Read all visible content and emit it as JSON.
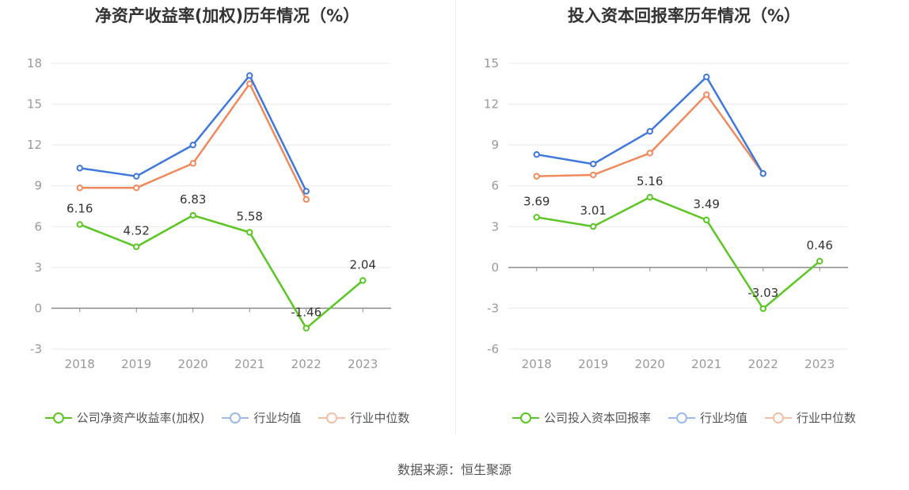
{
  "source": "数据来源：恒生聚源",
  "colors": {
    "company": "#5bc623",
    "industry_avg": "#3f78dd",
    "industry_median": "#f08a5d",
    "grid": "#e6e9f0",
    "axis": "#999999",
    "label": "#333333"
  },
  "legend_names": [
    "行业均值",
    "行业中位数"
  ],
  "chart_data": [
    {
      "type": "line",
      "title": "净资产收益率(加权)历年情况（%）",
      "categories": [
        "2018",
        "2019",
        "2020",
        "2021",
        "2022",
        "2023"
      ],
      "ylim": [
        -3,
        18
      ],
      "yticks": [
        -3,
        0,
        3,
        6,
        9,
        12,
        15,
        18
      ],
      "grid": true,
      "legend_position": "bottom",
      "series": [
        {
          "name": "公司净资产收益率(加权)",
          "values": [
            6.16,
            4.52,
            6.83,
            5.58,
            -1.46,
            2.04
          ],
          "data_labels": [
            "6.16",
            "4.52",
            "6.83",
            "5.58",
            "-1.46",
            "2.04"
          ]
        },
        {
          "name": "行业均值",
          "values": [
            10.3,
            9.7,
            12.0,
            17.1,
            8.6,
            null
          ]
        },
        {
          "name": "行业中位数",
          "values": [
            8.85,
            8.85,
            10.65,
            16.5,
            8.0,
            null
          ]
        }
      ]
    },
    {
      "type": "line",
      "title": "投入资本回报率历年情况（%）",
      "categories": [
        "2018",
        "2019",
        "2020",
        "2021",
        "2022",
        "2023"
      ],
      "ylim": [
        -6,
        15
      ],
      "yticks": [
        -6,
        -3,
        0,
        3,
        6,
        9,
        12,
        15
      ],
      "grid": true,
      "legend_position": "bottom",
      "series": [
        {
          "name": "公司投入资本回报率",
          "values": [
            3.69,
            3.01,
            5.16,
            3.49,
            -3.03,
            0.46
          ],
          "data_labels": [
            "3.69",
            "3.01",
            "5.16",
            "3.49",
            "-3.03",
            "0.46"
          ]
        },
        {
          "name": "行业均值",
          "values": [
            8.3,
            7.6,
            10.0,
            14.0,
            6.9,
            null
          ]
        },
        {
          "name": "行业中位数",
          "values": [
            6.7,
            6.8,
            8.4,
            12.7,
            6.9,
            null
          ]
        }
      ]
    }
  ]
}
